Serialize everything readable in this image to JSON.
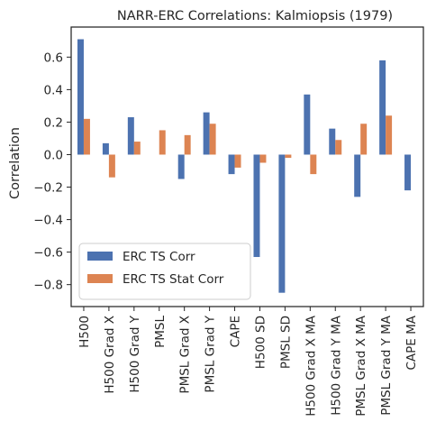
{
  "chart_data": {
    "type": "bar",
    "title": "NARR-ERC Correlations: Kalmiopsis (1979)",
    "xlabel": "",
    "ylabel": "Correlation",
    "ylim": [
      -0.935,
      0.785
    ],
    "yticks": [
      0.6,
      0.4,
      0.2,
      0.0,
      -0.2,
      -0.4,
      -0.6,
      -0.8
    ],
    "ytick_labels": [
      "0.6",
      "0.4",
      "0.2",
      "0.0",
      "−0.2",
      "−0.4",
      "−0.6",
      "−0.8"
    ],
    "grid": false,
    "legend_position": "lower-left",
    "categories": [
      "H500",
      "H500 Grad X",
      "H500 Grad Y",
      "PMSL",
      "PMSL Grad X",
      "PMSL Grad Y",
      "CAPE",
      "H500 SD",
      "PMSL SD",
      "H500 Grad X MA",
      "H500 Grad Y MA",
      "PMSL Grad X MA",
      "PMSL Grad Y MA",
      "CAPE MA"
    ],
    "series": [
      {
        "name": "ERC TS Corr",
        "color": "#4c72b0",
        "values": [
          0.71,
          0.07,
          0.23,
          0.0,
          -0.15,
          0.26,
          -0.12,
          -0.63,
          -0.85,
          0.37,
          0.16,
          -0.26,
          0.58,
          -0.22
        ]
      },
      {
        "name": "ERC TS Stat Corr",
        "color": "#dd8452",
        "values": [
          0.22,
          -0.14,
          0.08,
          0.15,
          0.12,
          0.19,
          -0.08,
          -0.05,
          -0.02,
          -0.12,
          0.09,
          0.19,
          0.24,
          0.0
        ]
      }
    ]
  }
}
